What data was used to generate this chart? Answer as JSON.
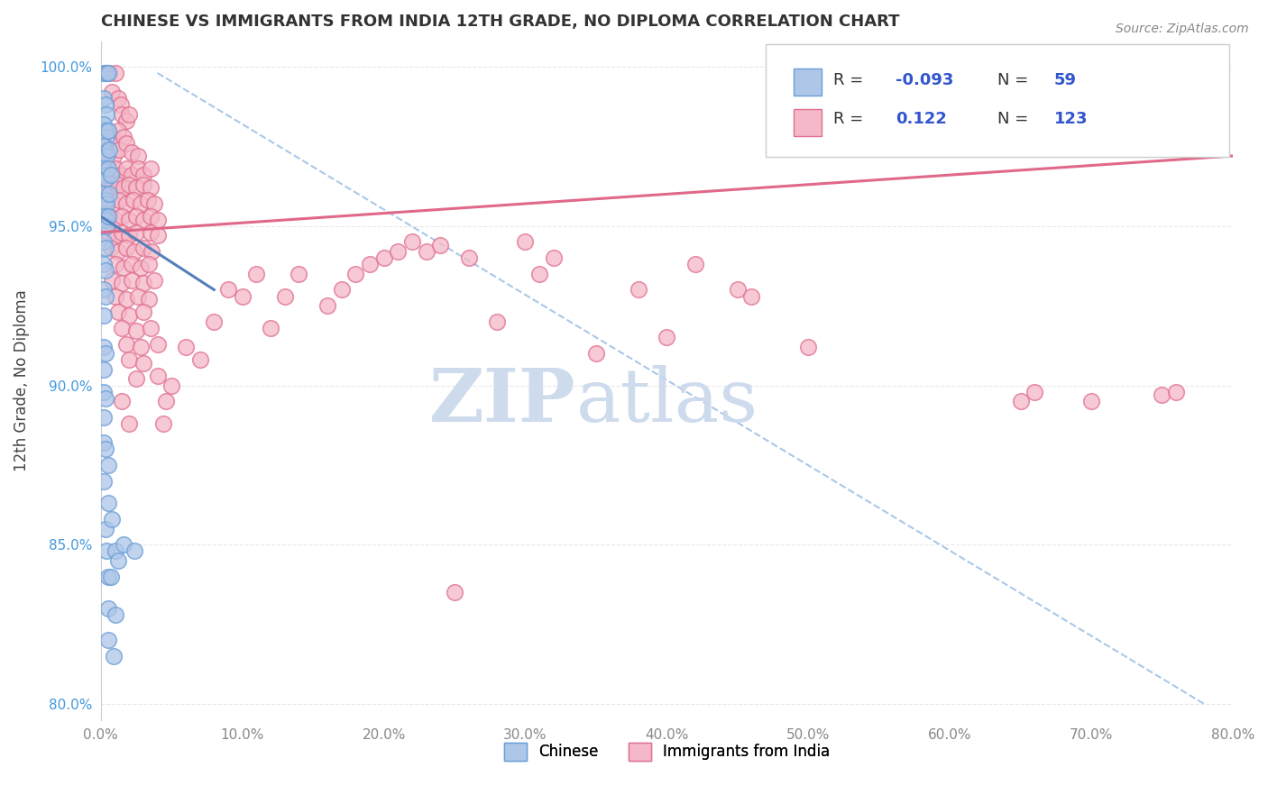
{
  "title": "CHINESE VS IMMIGRANTS FROM INDIA 12TH GRADE, NO DIPLOMA CORRELATION CHART",
  "source": "Source: ZipAtlas.com",
  "ylabel_text": "12th Grade, No Diploma",
  "xlim": [
    0.0,
    0.8
  ],
  "ylim": [
    0.795,
    1.008
  ],
  "xticks": [
    0.0,
    0.1,
    0.2,
    0.3,
    0.4,
    0.5,
    0.6,
    0.7,
    0.8
  ],
  "xticklabels": [
    "0.0%",
    "10.0%",
    "20.0%",
    "30.0%",
    "40.0%",
    "50.0%",
    "60.0%",
    "70.0%",
    "80.0%"
  ],
  "yticks": [
    0.8,
    0.85,
    0.9,
    0.95,
    1.0
  ],
  "yticklabels": [
    "80.0%",
    "85.0%",
    "90.0%",
    "95.0%",
    "100.0%"
  ],
  "r_chinese": -0.093,
  "n_chinese": 59,
  "r_india": 0.122,
  "n_india": 123,
  "blue_scatter_face": "#aec6e8",
  "blue_scatter_edge": "#6a9fd8",
  "pink_scatter_face": "#f5b8c8",
  "pink_scatter_edge": "#e07090",
  "blue_line_color": "#5580bb",
  "pink_line_color": "#e06888",
  "dashed_line_color": "#aac8e8",
  "watermark_color": "#c8d8ec",
  "legend_label_chinese": "Chinese",
  "legend_label_india": "Immigrants from India",
  "background_color": "#ffffff",
  "grid_color": "#e8e8e8",
  "tick_color_y": "#4499dd",
  "tick_color_x": "#888888",
  "title_color": "#333333",
  "source_color": "#888888",
  "ylabel_color": "#444444",
  "chinese_points": [
    [
      0.002,
      0.998
    ],
    [
      0.004,
      0.998
    ],
    [
      0.005,
      0.998
    ],
    [
      0.002,
      0.99
    ],
    [
      0.003,
      0.988
    ],
    [
      0.004,
      0.985
    ],
    [
      0.002,
      0.982
    ],
    [
      0.003,
      0.98
    ],
    [
      0.004,
      0.978
    ],
    [
      0.005,
      0.98
    ],
    [
      0.002,
      0.975
    ],
    [
      0.003,
      0.973
    ],
    [
      0.004,
      0.972
    ],
    [
      0.006,
      0.974
    ],
    [
      0.002,
      0.968
    ],
    [
      0.003,
      0.966
    ],
    [
      0.004,
      0.965
    ],
    [
      0.005,
      0.968
    ],
    [
      0.007,
      0.966
    ],
    [
      0.002,
      0.96
    ],
    [
      0.003,
      0.958
    ],
    [
      0.004,
      0.957
    ],
    [
      0.006,
      0.96
    ],
    [
      0.002,
      0.953
    ],
    [
      0.003,
      0.952
    ],
    [
      0.004,
      0.95
    ],
    [
      0.005,
      0.953
    ],
    [
      0.002,
      0.945
    ],
    [
      0.003,
      0.943
    ],
    [
      0.002,
      0.938
    ],
    [
      0.003,
      0.936
    ],
    [
      0.002,
      0.93
    ],
    [
      0.003,
      0.928
    ],
    [
      0.002,
      0.922
    ],
    [
      0.002,
      0.912
    ],
    [
      0.003,
      0.91
    ],
    [
      0.002,
      0.905
    ],
    [
      0.002,
      0.898
    ],
    [
      0.003,
      0.896
    ],
    [
      0.002,
      0.89
    ],
    [
      0.002,
      0.882
    ],
    [
      0.003,
      0.88
    ],
    [
      0.005,
      0.875
    ],
    [
      0.002,
      0.87
    ],
    [
      0.005,
      0.863
    ],
    [
      0.003,
      0.855
    ],
    [
      0.004,
      0.848
    ],
    [
      0.005,
      0.84
    ],
    [
      0.005,
      0.83
    ],
    [
      0.005,
      0.82
    ],
    [
      0.008,
      0.858
    ],
    [
      0.007,
      0.84
    ],
    [
      0.009,
      0.815
    ],
    [
      0.01,
      0.848
    ],
    [
      0.01,
      0.828
    ],
    [
      0.012,
      0.845
    ],
    [
      0.016,
      0.85
    ],
    [
      0.024,
      0.848
    ]
  ],
  "india_points": [
    [
      0.003,
      0.998
    ],
    [
      0.006,
      0.998
    ],
    [
      0.01,
      0.998
    ],
    [
      0.008,
      0.992
    ],
    [
      0.012,
      0.99
    ],
    [
      0.014,
      0.988
    ],
    [
      0.015,
      0.985
    ],
    [
      0.018,
      0.983
    ],
    [
      0.02,
      0.985
    ],
    [
      0.005,
      0.98
    ],
    [
      0.008,
      0.978
    ],
    [
      0.012,
      0.98
    ],
    [
      0.016,
      0.978
    ],
    [
      0.003,
      0.975
    ],
    [
      0.006,
      0.973
    ],
    [
      0.009,
      0.972
    ],
    [
      0.013,
      0.974
    ],
    [
      0.018,
      0.976
    ],
    [
      0.022,
      0.973
    ],
    [
      0.026,
      0.972
    ],
    [
      0.004,
      0.968
    ],
    [
      0.007,
      0.966
    ],
    [
      0.01,
      0.968
    ],
    [
      0.014,
      0.966
    ],
    [
      0.018,
      0.968
    ],
    [
      0.022,
      0.966
    ],
    [
      0.026,
      0.968
    ],
    [
      0.03,
      0.966
    ],
    [
      0.035,
      0.968
    ],
    [
      0.005,
      0.963
    ],
    [
      0.008,
      0.962
    ],
    [
      0.012,
      0.963
    ],
    [
      0.016,
      0.962
    ],
    [
      0.02,
      0.963
    ],
    [
      0.025,
      0.962
    ],
    [
      0.03,
      0.963
    ],
    [
      0.035,
      0.962
    ],
    [
      0.005,
      0.958
    ],
    [
      0.009,
      0.957
    ],
    [
      0.013,
      0.958
    ],
    [
      0.018,
      0.957
    ],
    [
      0.023,
      0.958
    ],
    [
      0.028,
      0.957
    ],
    [
      0.033,
      0.958
    ],
    [
      0.038,
      0.957
    ],
    [
      0.006,
      0.953
    ],
    [
      0.01,
      0.952
    ],
    [
      0.015,
      0.953
    ],
    [
      0.02,
      0.952
    ],
    [
      0.025,
      0.953
    ],
    [
      0.03,
      0.952
    ],
    [
      0.035,
      0.953
    ],
    [
      0.04,
      0.952
    ],
    [
      0.005,
      0.948
    ],
    [
      0.01,
      0.947
    ],
    [
      0.015,
      0.948
    ],
    [
      0.02,
      0.947
    ],
    [
      0.025,
      0.948
    ],
    [
      0.035,
      0.948
    ],
    [
      0.04,
      0.947
    ],
    [
      0.007,
      0.943
    ],
    [
      0.012,
      0.942
    ],
    [
      0.018,
      0.943
    ],
    [
      0.024,
      0.942
    ],
    [
      0.03,
      0.943
    ],
    [
      0.036,
      0.942
    ],
    [
      0.01,
      0.938
    ],
    [
      0.016,
      0.937
    ],
    [
      0.022,
      0.938
    ],
    [
      0.028,
      0.937
    ],
    [
      0.034,
      0.938
    ],
    [
      0.008,
      0.933
    ],
    [
      0.015,
      0.932
    ],
    [
      0.022,
      0.933
    ],
    [
      0.03,
      0.932
    ],
    [
      0.038,
      0.933
    ],
    [
      0.01,
      0.928
    ],
    [
      0.018,
      0.927
    ],
    [
      0.026,
      0.928
    ],
    [
      0.034,
      0.927
    ],
    [
      0.012,
      0.923
    ],
    [
      0.02,
      0.922
    ],
    [
      0.03,
      0.923
    ],
    [
      0.015,
      0.918
    ],
    [
      0.025,
      0.917
    ],
    [
      0.035,
      0.918
    ],
    [
      0.018,
      0.913
    ],
    [
      0.028,
      0.912
    ],
    [
      0.04,
      0.913
    ],
    [
      0.02,
      0.908
    ],
    [
      0.03,
      0.907
    ],
    [
      0.025,
      0.902
    ],
    [
      0.04,
      0.903
    ],
    [
      0.015,
      0.895
    ],
    [
      0.02,
      0.888
    ],
    [
      0.28,
      0.92
    ],
    [
      0.5,
      0.912
    ],
    [
      0.65,
      0.895
    ],
    [
      0.66,
      0.898
    ],
    [
      0.7,
      0.895
    ],
    [
      0.75,
      0.897
    ],
    [
      0.76,
      0.898
    ],
    [
      0.35,
      0.91
    ],
    [
      0.4,
      0.915
    ],
    [
      0.45,
      0.93
    ],
    [
      0.16,
      0.925
    ],
    [
      0.17,
      0.93
    ],
    [
      0.18,
      0.935
    ],
    [
      0.19,
      0.938
    ],
    [
      0.2,
      0.94
    ],
    [
      0.21,
      0.942
    ],
    [
      0.22,
      0.945
    ],
    [
      0.23,
      0.942
    ],
    [
      0.24,
      0.944
    ],
    [
      0.26,
      0.94
    ],
    [
      0.31,
      0.935
    ],
    [
      0.25,
      0.835
    ],
    [
      0.38,
      0.93
    ],
    [
      0.3,
      0.945
    ],
    [
      0.32,
      0.94
    ],
    [
      0.42,
      0.938
    ],
    [
      0.46,
      0.928
    ],
    [
      0.12,
      0.918
    ],
    [
      0.13,
      0.928
    ],
    [
      0.14,
      0.935
    ],
    [
      0.1,
      0.928
    ],
    [
      0.11,
      0.935
    ],
    [
      0.09,
      0.93
    ],
    [
      0.08,
      0.92
    ],
    [
      0.06,
      0.912
    ],
    [
      0.07,
      0.908
    ],
    [
      0.05,
      0.9
    ],
    [
      0.046,
      0.895
    ],
    [
      0.044,
      0.888
    ]
  ],
  "blue_line_x": [
    0.0,
    0.08
  ],
  "blue_line_y": [
    0.953,
    0.93
  ],
  "pink_line_x": [
    0.0,
    0.8
  ],
  "pink_line_y": [
    0.948,
    0.972
  ],
  "dashed_line_x": [
    0.04,
    0.78
  ],
  "dashed_line_y": [
    0.998,
    0.8
  ]
}
